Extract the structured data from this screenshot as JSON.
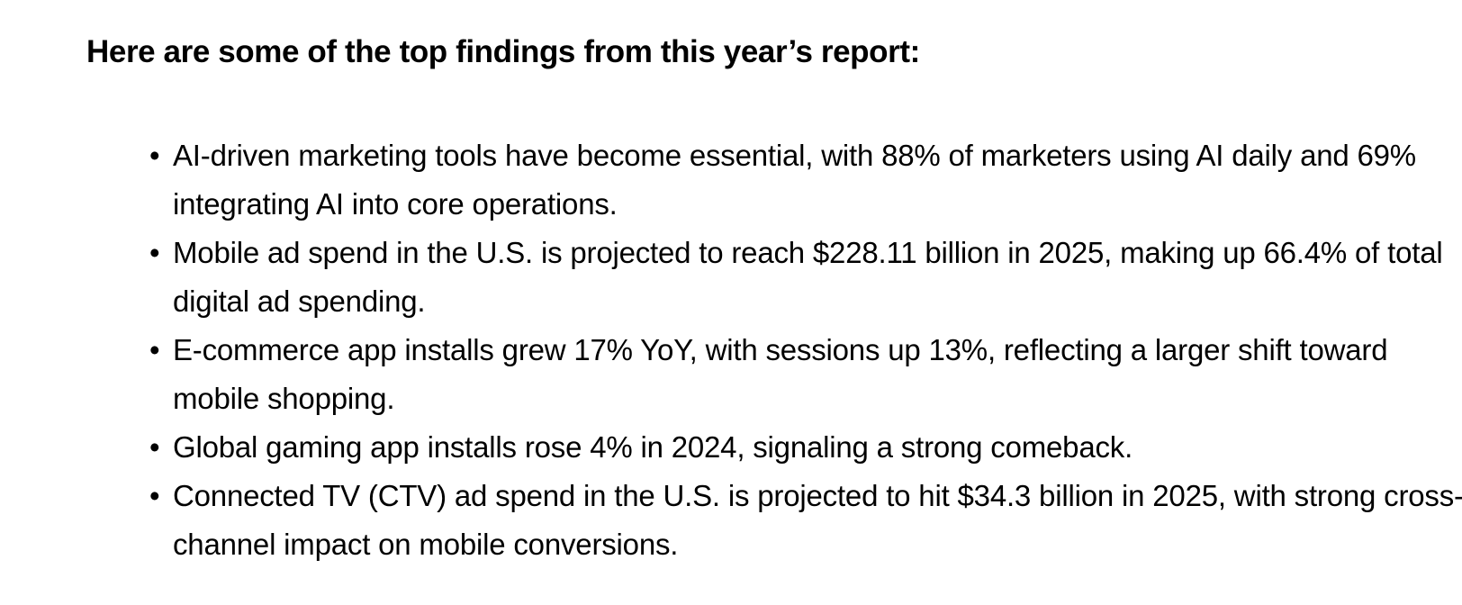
{
  "heading": "Here are some of the top findings from this year’s report:",
  "bullet_glyph": "•",
  "findings": [
    "AI-driven marketing tools have become essential, with 88% of marketers using AI daily and 69% integrating AI into core operations.",
    "Mobile ad spend in the U.S. is projected to reach $228.11 billion in 2025, making up 66.4% of total digital ad spending.",
    "E-commerce app installs grew 17% YoY, with sessions up 13%, reflecting a larger shift toward mobile shopping.",
    "Global gaming app installs rose 4% in 2024, signaling a strong comeback.",
    "Connected TV (CTV) ad spend in the U.S. is projected to hit $34.3 billion in 2025, with strong cross-channel impact on mobile conversions."
  ]
}
